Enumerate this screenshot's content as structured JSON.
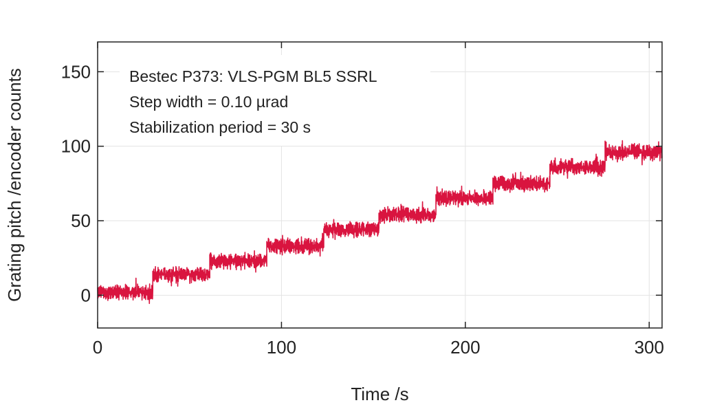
{
  "chart_data": {
    "type": "line",
    "title": "",
    "xlabel": "Time /s",
    "ylabel": "Grating pitch /encoder counts",
    "xlim": [
      0,
      307
    ],
    "ylim": [
      -22,
      170
    ],
    "xticks": [
      0,
      100,
      200,
      300
    ],
    "yticks": [
      0,
      50,
      100,
      150
    ],
    "grid": true,
    "annotations": [
      "Bestec P373: VLS-PGM BL5 SSRL",
      "Step width = 0.10 µrad",
      "Stabilization period = 30 s"
    ],
    "series": [
      {
        "color": "#d9143f",
        "noise_amplitude": 6,
        "steps": [
          {
            "x_start": 0,
            "x_end": 30,
            "y": 2
          },
          {
            "x_start": 30,
            "x_end": 61,
            "y": 14
          },
          {
            "x_start": 61,
            "x_end": 92,
            "y": 23
          },
          {
            "x_start": 92,
            "x_end": 123,
            "y": 33
          },
          {
            "x_start": 123,
            "x_end": 153,
            "y": 44
          },
          {
            "x_start": 153,
            "x_end": 184,
            "y": 54
          },
          {
            "x_start": 184,
            "x_end": 215,
            "y": 65
          },
          {
            "x_start": 215,
            "x_end": 246,
            "y": 75
          },
          {
            "x_start": 246,
            "x_end": 276,
            "y": 86
          },
          {
            "x_start": 276,
            "x_end": 307,
            "y": 96
          }
        ]
      }
    ]
  }
}
